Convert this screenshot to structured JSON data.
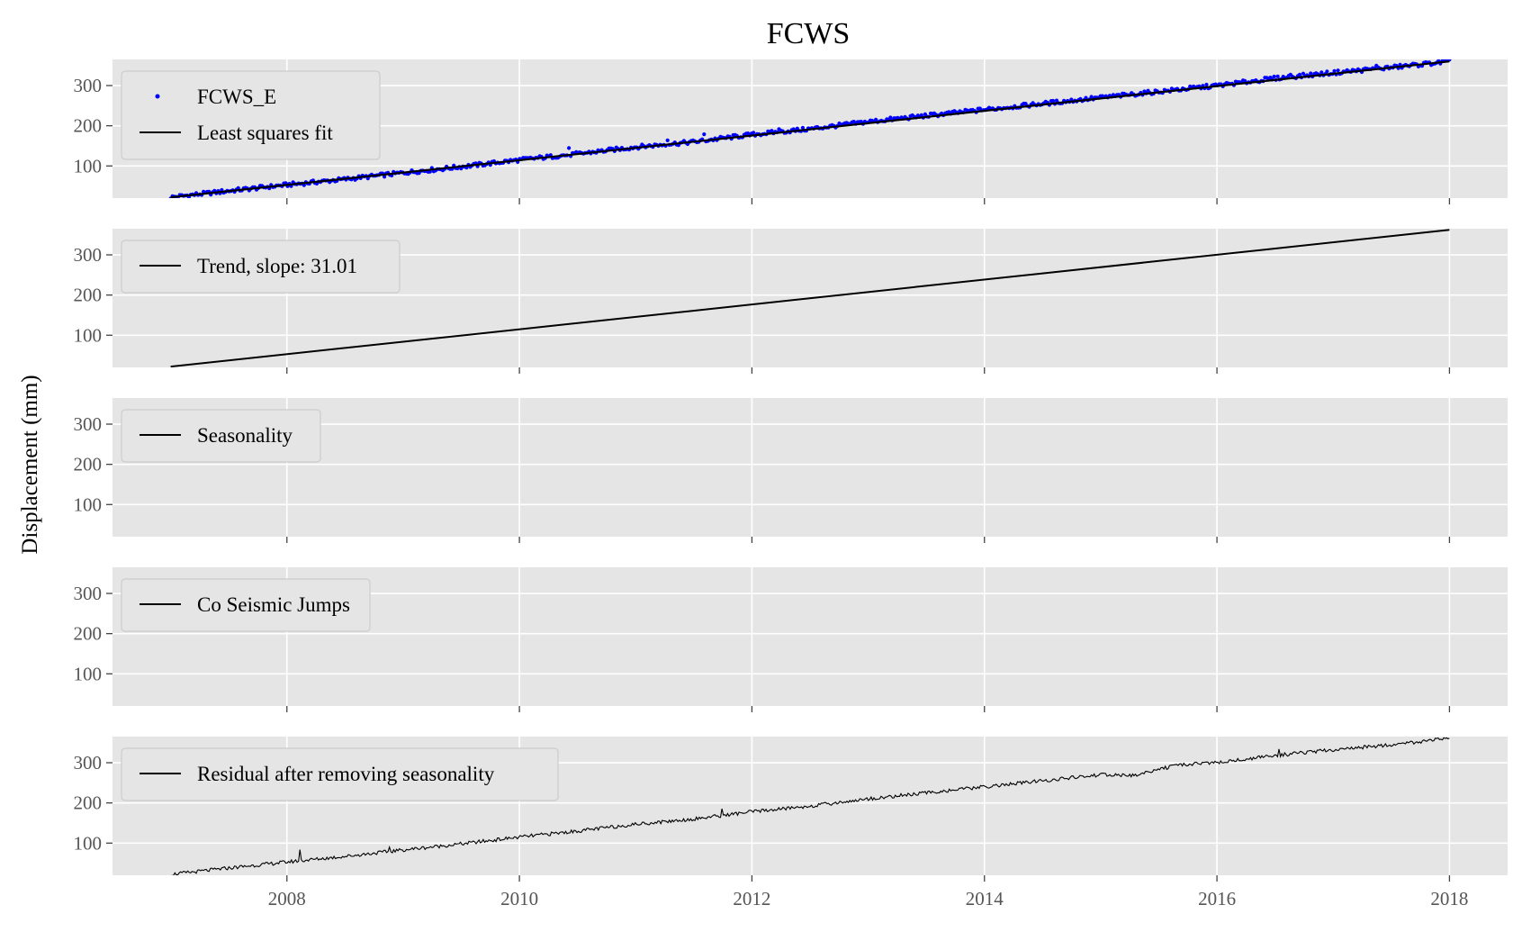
{
  "chart_data": {
    "type": "line",
    "title": "FCWS",
    "ylabel": "Displacement (mm)",
    "xlabel": "",
    "xlim": [
      2006.5,
      2018.5
    ],
    "ylim": [
      20,
      365
    ],
    "x_ticks": [
      2008,
      2010,
      2012,
      2014,
      2016,
      2018
    ],
    "x_tick_labels": [
      "2008",
      "2010",
      "2012",
      "2014",
      "2016",
      "2018"
    ],
    "y_ticks": [
      100,
      200,
      300
    ],
    "y_tick_labels": [
      "100",
      "200",
      "300"
    ],
    "grid": true,
    "legend_position": "upper left",
    "colors": {
      "panel_background": "#e5e5e5",
      "grid": "#ffffff",
      "data_points": "#0000ff",
      "line": "#000000"
    },
    "panels": [
      {
        "legend": [
          {
            "label": "FCWS_E",
            "kind": "marker",
            "color": "#0000ff"
          },
          {
            "label": "Least squares fit",
            "kind": "line",
            "color": "#000000"
          }
        ],
        "series": [
          {
            "name": "FCWS_E",
            "render": "scatter",
            "color": "#0000ff",
            "x": [
              2007.0,
              2007.5,
              2008.0,
              2008.5,
              2009.0,
              2009.5,
              2010.0,
              2010.5,
              2011.0,
              2011.5,
              2012.0,
              2012.5,
              2013.0,
              2013.5,
              2014.0,
              2014.5,
              2015.0,
              2015.5,
              2016.0,
              2016.5,
              2017.0,
              2017.5,
              2018.0
            ],
            "y": [
              22,
              38,
              53,
              67,
              83,
              98,
              115,
              130,
              147,
              160,
              178,
              192,
              210,
              225,
              240,
              255,
              270,
              285,
              300,
              318,
              332,
              345,
              360
            ]
          },
          {
            "name": "Least squares fit",
            "render": "line",
            "color": "#000000",
            "width": 2.2,
            "x": [
              2007.0,
              2018.0
            ],
            "y": [
              22,
              360
            ]
          }
        ]
      },
      {
        "legend": [
          {
            "label": "Trend, slope: 31.01",
            "kind": "line",
            "color": "#000000"
          }
        ],
        "series": [
          {
            "name": "Trend, slope: 31.01",
            "render": "line",
            "color": "#000000",
            "width": 2,
            "x": [
              2007.0,
              2018.0
            ],
            "y": [
              22,
              362
            ]
          }
        ]
      },
      {
        "legend": [
          {
            "label": "Seasonality",
            "kind": "line",
            "color": "#000000"
          }
        ],
        "series": []
      },
      {
        "legend": [
          {
            "label": "Co Seismic Jumps",
            "kind": "line",
            "color": "#000000"
          }
        ],
        "series": []
      },
      {
        "legend": [
          {
            "label": "Residual after removing seasonality",
            "kind": "line",
            "color": "#000000"
          }
        ],
        "series": [
          {
            "name": "Residual after removing seasonality",
            "render": "line",
            "color": "#000000",
            "width": 1.1,
            "x": [
              2007.0,
              2007.5,
              2008.0,
              2008.5,
              2009.0,
              2009.5,
              2010.0,
              2010.5,
              2011.0,
              2011.5,
              2012.0,
              2012.5,
              2013.0,
              2013.5,
              2014.0,
              2014.5,
              2015.0,
              2015.3,
              2015.5,
              2015.8,
              2016.0,
              2016.5,
              2017.0,
              2017.5,
              2018.0
            ],
            "y": [
              22,
              38,
              53,
              67,
              83,
              98,
              115,
              130,
              147,
              160,
              178,
              192,
              210,
              225,
              240,
              255,
              270,
              268,
              285,
              298,
              300,
              318,
              332,
              345,
              360
            ]
          }
        ]
      }
    ]
  }
}
